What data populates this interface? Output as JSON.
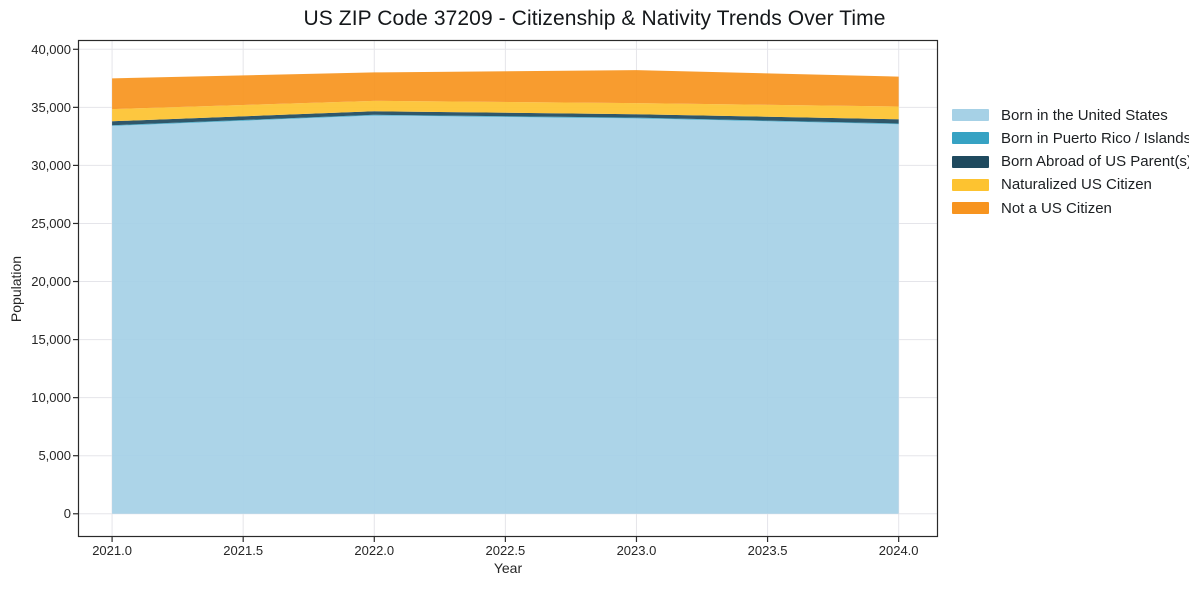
{
  "chart": {
    "title": "US ZIP Code 37209 - Citizenship & Nativity Trends Over Time",
    "xlabel": "Year",
    "ylabel": "Population"
  },
  "chart_data": {
    "type": "area",
    "stacked": true,
    "title": "US ZIP Code 37209 - Citizenship & Nativity Trends Over Time",
    "xlabel": "Year",
    "ylabel": "Population",
    "x": [
      2021,
      2022,
      2023,
      2024
    ],
    "series": [
      {
        "name": "Born in the United States",
        "color": "#a6d1e6",
        "values": [
          33400,
          34300,
          34050,
          33550
        ]
      },
      {
        "name": "Born in Puerto Rico / Islands",
        "color": "#36a2c3",
        "values": [
          60,
          60,
          60,
          60
        ]
      },
      {
        "name": "Born Abroad of US Parent(s)",
        "color": "#1f4a5f",
        "values": [
          340,
          300,
          300,
          360
        ]
      },
      {
        "name": "Naturalized US Citizen",
        "color": "#fdc330",
        "values": [
          1050,
          900,
          950,
          1100
        ]
      },
      {
        "name": "Not a US Citizen",
        "color": "#f7941f",
        "values": [
          2650,
          2450,
          2850,
          2580
        ]
      }
    ],
    "xticks": {
      "values": [
        2021,
        2021.5,
        2022,
        2022.5,
        2023,
        2023.5,
        2024
      ],
      "labels": [
        "2021.0",
        "2021.5",
        "2022.0",
        "2022.5",
        "2023.0",
        "2023.5",
        "2024.0"
      ]
    },
    "yticks": {
      "values": [
        0,
        5000,
        10000,
        15000,
        20000,
        25000,
        30000,
        35000,
        40000
      ],
      "labels": [
        "0",
        "5,000",
        "10,000",
        "15,000",
        "20,000",
        "25,000",
        "30,000",
        "35,000",
        "40,000"
      ]
    },
    "xlim": [
      2020.87,
      2024.15
    ],
    "ylim": [
      -2000,
      40800
    ],
    "grid": true,
    "legend_position": "right-outside",
    "colors": {
      "background": "#ffffff",
      "gridline": "#e5e5ea",
      "axis_border": "#2a2a2a",
      "tick_text": "#262626",
      "title_text": "#14171a"
    }
  }
}
